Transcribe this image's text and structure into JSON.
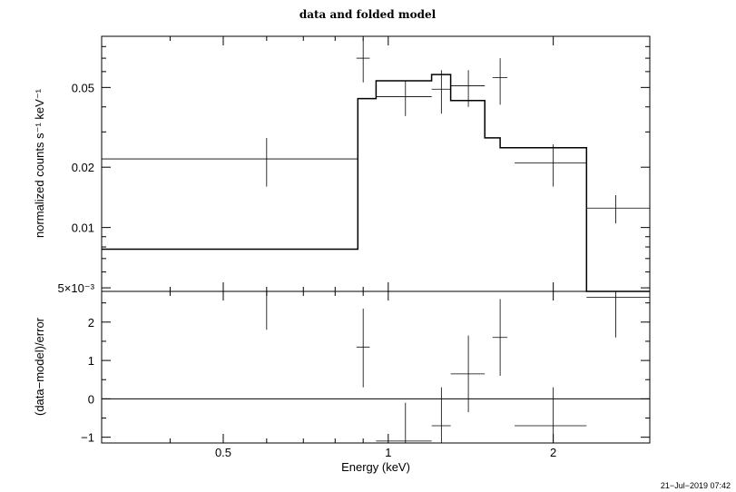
{
  "chart_data": [
    {
      "type": "scatter",
      "title": "data and folded model",
      "ylabel": "normalized counts s⁻¹ keV⁻¹",
      "xscale": "log",
      "yscale": "log",
      "xlim": [
        0.3,
        3.0
      ],
      "ylim": [
        0.0048,
        0.09
      ],
      "x_ticks": [
        0.5,
        1,
        2
      ],
      "y_ticks": [
        {
          "value": 0.005,
          "label": "5×10⁻³"
        },
        {
          "value": 0.01,
          "label": "0.01"
        },
        {
          "value": 0.02,
          "label": "0.02"
        },
        {
          "value": 0.05,
          "label": "0.05"
        }
      ],
      "series": [
        {
          "style": "errorbars",
          "points": [
            {
              "x": 0.6,
              "xlo": 0.3,
              "xhi": 0.88,
              "y": 0.022,
              "ylo": 0.016,
              "yhi": 0.028
            },
            {
              "x": 0.9,
              "xlo": 0.875,
              "xhi": 0.925,
              "y": 0.07,
              "ylo": 0.053,
              "yhi": 0.088
            },
            {
              "x": 1.075,
              "xlo": 0.95,
              "xhi": 1.2,
              "y": 0.045,
              "ylo": 0.036,
              "yhi": 0.054
            },
            {
              "x": 1.25,
              "xlo": 1.2,
              "xhi": 1.3,
              "y": 0.049,
              "ylo": 0.037,
              "yhi": 0.061
            },
            {
              "x": 1.4,
              "xlo": 1.3,
              "xhi": 1.5,
              "y": 0.051,
              "ylo": 0.04,
              "yhi": 0.061
            },
            {
              "x": 1.6,
              "xlo": 1.55,
              "xhi": 1.65,
              "y": 0.056,
              "ylo": 0.041,
              "yhi": 0.07
            },
            {
              "x": 2.0,
              "xlo": 1.7,
              "xhi": 2.3,
              "y": 0.021,
              "ylo": 0.016,
              "yhi": 0.026
            },
            {
              "x": 2.6,
              "xlo": 2.3,
              "xhi": 3.0,
              "y": 0.0125,
              "ylo": 0.0105,
              "yhi": 0.0145
            }
          ]
        },
        {
          "style": "histogram",
          "bins": [
            {
              "xlo": 0.3,
              "xhi": 0.88,
              "y": 0.0078
            },
            {
              "xlo": 0.88,
              "xhi": 0.95,
              "y": 0.044
            },
            {
              "xlo": 0.95,
              "xhi": 1.2,
              "y": 0.054
            },
            {
              "xlo": 1.2,
              "xhi": 1.3,
              "y": 0.058
            },
            {
              "xlo": 1.3,
              "xhi": 1.5,
              "y": 0.043
            },
            {
              "xlo": 1.5,
              "xhi": 1.6,
              "y": 0.028
            },
            {
              "xlo": 1.6,
              "xhi": 2.3,
              "y": 0.025
            },
            {
              "xlo": 2.3,
              "xhi": 3.0,
              "y": 0.0048
            }
          ]
        }
      ]
    },
    {
      "type": "scatter",
      "xlabel": "Energy (keV)",
      "ylabel": "(data−model)/error",
      "xscale": "log",
      "xlim": [
        0.3,
        3.0
      ],
      "ylim": [
        -1.15,
        2.8
      ],
      "x_ticks": [
        0.5,
        1,
        2
      ],
      "y_ticks": [
        {
          "value": -1,
          "label": "−1"
        },
        {
          "value": 0,
          "label": "0"
        },
        {
          "value": 1,
          "label": "1"
        },
        {
          "value": 2,
          "label": "2"
        }
      ],
      "zero_line": 0,
      "series": [
        {
          "style": "errorbars",
          "points": [
            {
              "x": 0.6,
              "xlo": 0.3,
              "xhi": 0.88,
              "y": 2.8,
              "ylo": 1.8,
              "yhi": 3.0
            },
            {
              "x": 0.9,
              "xlo": 0.875,
              "xhi": 0.925,
              "y": 1.35,
              "ylo": 0.3,
              "yhi": 2.35
            },
            {
              "x": 1.075,
              "xlo": 0.95,
              "xhi": 1.2,
              "y": -1.1,
              "ylo": -1.5,
              "yhi": -0.1
            },
            {
              "x": 1.25,
              "xlo": 1.2,
              "xhi": 1.3,
              "y": -0.7,
              "ylo": -1.5,
              "yhi": 0.3
            },
            {
              "x": 1.4,
              "xlo": 1.3,
              "xhi": 1.5,
              "y": 0.65,
              "ylo": -0.35,
              "yhi": 1.65
            },
            {
              "x": 1.6,
              "xlo": 1.55,
              "xhi": 1.65,
              "y": 1.6,
              "ylo": 0.6,
              "yhi": 2.6
            },
            {
              "x": 2.0,
              "xlo": 1.7,
              "xhi": 2.3,
              "y": -0.7,
              "ylo": -1.7,
              "yhi": 0.3
            },
            {
              "x": 2.6,
              "xlo": 2.3,
              "xhi": 3.0,
              "y": 2.65,
              "ylo": 1.6,
              "yhi": 3.0
            }
          ]
        }
      ]
    }
  ],
  "footer": {
    "timestamp": "21−Jul−2019 07:42"
  }
}
